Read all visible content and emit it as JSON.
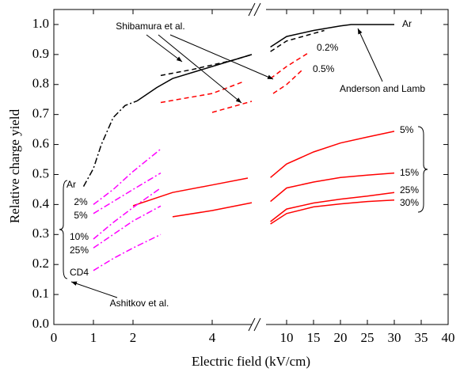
{
  "chart_data": {
    "type": "line",
    "xlabel": "Electric field (kV/cm)",
    "ylabel": "Relative charge yield",
    "xlim": [
      0,
      40
    ],
    "ylim": [
      0,
      1.05
    ],
    "xticks": [
      0,
      1,
      2,
      4,
      10,
      15,
      20,
      25,
      30,
      35,
      40
    ],
    "yticks": [
      {
        "value": 0,
        "label": "0.0"
      },
      {
        "value": 0.1,
        "label": "0.1"
      },
      {
        "value": 0.2,
        "label": "0.2"
      },
      {
        "value": 0.3,
        "label": "0.3"
      },
      {
        "value": 0.4,
        "label": "0.4"
      },
      {
        "value": 0.5,
        "label": "0.5"
      },
      {
        "value": 0.6,
        "label": "0.6"
      },
      {
        "value": 0.7,
        "label": "0.7"
      },
      {
        "value": 0.8,
        "label": "0.8"
      },
      {
        "value": 0.9,
        "label": "0.9"
      },
      {
        "value": 1.0,
        "label": "1.0"
      }
    ],
    "annotations": [
      "Shibamura et al.",
      "Anderson and Lamb",
      "Ashitkov et al."
    ],
    "series": [
      {
        "label": "Ar",
        "color": "#000000",
        "style": "dashdot",
        "x": [
          0.75,
          1.0,
          1.2,
          1.5,
          1.8,
          2.1
        ],
        "values": [
          0.46,
          0.52,
          0.6,
          0.69,
          0.73,
          0.745
        ]
      },
      {
        "label": "Ar",
        "color": "#000000",
        "style": "solid",
        "x": [
          2.1,
          2.6,
          3,
          4,
          5,
          null,
          7,
          10,
          15,
          20,
          22,
          30
        ],
        "values": [
          0.745,
          0.79,
          0.82,
          0.86,
          0.9,
          null,
          0.925,
          0.96,
          0.98,
          0.995,
          1.0,
          1.0
        ]
      },
      {
        "color": "#000000",
        "style": "dashed",
        "x": [
          2.7,
          3.5,
          4.5,
          5,
          null,
          7,
          10,
          15,
          17
        ],
        "values": [
          0.83,
          0.85,
          0.88,
          0.9,
          null,
          0.91,
          0.945,
          0.97,
          0.98
        ]
      },
      {
        "label": "0.2%",
        "color": "#ff0000",
        "style": "dashed",
        "x": [
          2.7,
          4,
          4.8,
          null,
          7,
          10,
          14
        ],
        "values": [
          0.74,
          0.77,
          0.81,
          null,
          0.82,
          0.86,
          0.905
        ]
      },
      {
        "label": "0.5%",
        "color": "#ff0000",
        "style": "dashed",
        "x": [
          4,
          5,
          null,
          7.5,
          10,
          13
        ],
        "values": [
          0.707,
          0.744,
          null,
          0.77,
          0.8,
          0.85
        ]
      },
      {
        "label": "5%",
        "color": "#ff0000",
        "style": "solid",
        "x": [
          2,
          3,
          4,
          4.9,
          null,
          7,
          10,
          15,
          20,
          25,
          30
        ],
        "values": [
          0.396,
          0.44,
          0.465,
          0.488,
          null,
          0.49,
          0.535,
          0.575,
          0.605,
          0.625,
          0.644
        ]
      },
      {
        "label": "15%",
        "color": "#ff0000",
        "style": "solid",
        "x": [
          3,
          4,
          5,
          null,
          7,
          10,
          15,
          20,
          25,
          30
        ],
        "values": [
          0.359,
          0.38,
          0.406,
          null,
          0.41,
          0.455,
          0.475,
          0.49,
          0.498,
          0.505
        ]
      },
      {
        "label": "25%",
        "color": "#ff0000",
        "style": "solid",
        "x": [
          7,
          10,
          15,
          20,
          25,
          30
        ],
        "values": [
          0.343,
          0.385,
          0.405,
          0.418,
          0.428,
          0.44
        ]
      },
      {
        "label": "30%",
        "color": "#ff0000",
        "style": "solid",
        "x": [
          7,
          10,
          15,
          20,
          25,
          30
        ],
        "values": [
          0.335,
          0.37,
          0.392,
          0.402,
          0.41,
          0.415
        ]
      },
      {
        "label": "2%",
        "color": "#ff00ff",
        "style": "dashdot",
        "x": [
          1,
          1.5,
          2,
          2.7
        ],
        "values": [
          0.4,
          0.45,
          0.51,
          0.585
        ]
      },
      {
        "label": "5%",
        "color": "#ff00ff",
        "style": "dashdot",
        "x": [
          1,
          1.5,
          2,
          2.7
        ],
        "values": [
          0.37,
          0.41,
          0.45,
          0.505
        ]
      },
      {
        "label": "10%",
        "color": "#ff00ff",
        "style": "dashdot",
        "x": [
          1,
          1.5,
          2,
          2.7
        ],
        "values": [
          0.285,
          0.34,
          0.39,
          0.455
        ]
      },
      {
        "label": "25%",
        "color": "#ff00ff",
        "style": "dashdot",
        "x": [
          1,
          1.5,
          2,
          2.7
        ],
        "values": [
          0.255,
          0.3,
          0.345,
          0.395
        ]
      },
      {
        "label": "CD4",
        "color": "#ff00ff",
        "style": "dashdot",
        "x": [
          1,
          1.5,
          2,
          2.7
        ],
        "values": [
          0.18,
          0.22,
          0.255,
          0.3
        ]
      }
    ]
  }
}
